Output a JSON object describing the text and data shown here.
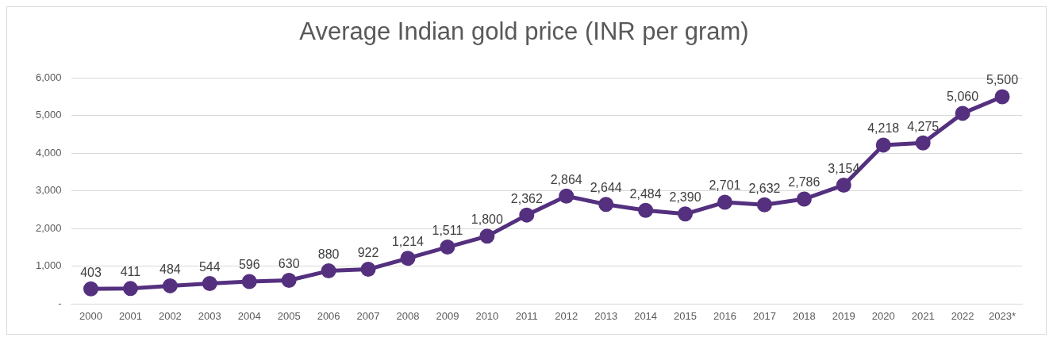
{
  "chart_data": {
    "type": "line",
    "title": "Average Indian gold price (INR per gram)",
    "categories": [
      "2000",
      "2001",
      "2002",
      "2003",
      "2004",
      "2005",
      "2006",
      "2007",
      "2008",
      "2009",
      "2010",
      "2011",
      "2012",
      "2013",
      "2014",
      "2015",
      "2016",
      "2017",
      "2018",
      "2019",
      "2020",
      "2021",
      "2022",
      "2023*"
    ],
    "series": [
      {
        "color": "#54307f",
        "values": [
          403,
          411,
          484,
          544,
          596,
          630,
          880,
          922,
          1214,
          1511,
          1800,
          2362,
          2864,
          2644,
          2484,
          2390,
          2701,
          2632,
          2786,
          3154,
          4218,
          4275,
          5060,
          5500
        ],
        "value_labels": [
          "403",
          "411",
          "484",
          "544",
          "596",
          "630",
          "880",
          "922",
          "1,214",
          "1,511",
          "1,800",
          "2,362",
          "2,864",
          "2,644",
          "2,484",
          "2,390",
          "2,701",
          "2,632",
          "2,786",
          "3,154",
          "4,218",
          "4,275",
          "5,060",
          "5,500"
        ]
      }
    ],
    "ylim": [
      0,
      6000
    ],
    "yticks": [
      {
        "value": 0,
        "label": "-"
      },
      {
        "value": 1000,
        "label": "1,000"
      },
      {
        "value": 2000,
        "label": "2,000"
      },
      {
        "value": 3000,
        "label": "3,000"
      },
      {
        "value": 4000,
        "label": "4,000"
      },
      {
        "value": 5000,
        "label": "5,000"
      },
      {
        "value": 6000,
        "label": "6,000"
      }
    ],
    "grid": "y",
    "legend": false,
    "marker": "circle",
    "line_style": "solid"
  }
}
